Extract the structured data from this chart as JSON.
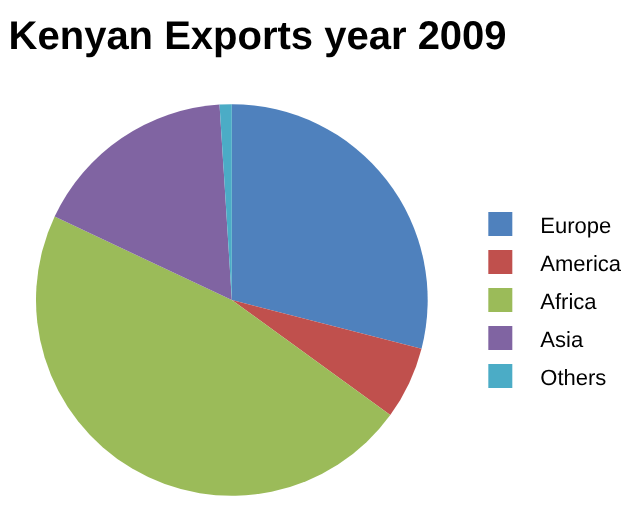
{
  "chart_data": {
    "type": "pie",
    "title": "Kenyan Exports year 2009",
    "categories": [
      "Europe",
      "America",
      "Africa",
      "Asia",
      "Others"
    ],
    "values": [
      29,
      6,
      47,
      17,
      1
    ],
    "colors": [
      "#4f81bd",
      "#c0504d",
      "#9bbb59",
      "#8064a2",
      "#4bacc6"
    ],
    "legend": "right"
  }
}
